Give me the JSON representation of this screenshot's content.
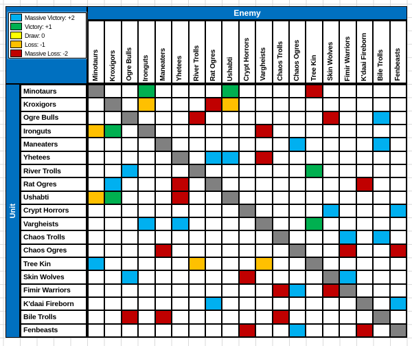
{
  "header": {
    "enemy_label": "Enemy",
    "unit_label": "Unit"
  },
  "legend": [
    {
      "code": "+2",
      "label": "Massive Victory: +2",
      "color_key": "cell_cyan"
    },
    {
      "code": "+1",
      "label": "Victory: +1",
      "color_key": "cell_green"
    },
    {
      "code": "0",
      "label": "Draw: 0",
      "color_key": "cell_yellow"
    },
    {
      "code": "-1",
      "label": "Loss: -1",
      "color_key": "cell_orange"
    },
    {
      "code": "-2",
      "label": "Massive Loss: -2",
      "color_key": "cell_red"
    }
  ],
  "colors": {
    "header_blue": "#0070C0",
    "cell_cyan": "#00B0F0",
    "cell_green": "#00B050",
    "cell_yellow": "#FFFF00",
    "cell_orange": "#FFC000",
    "cell_red": "#C00000",
    "mirror_gray": "#808080",
    "empty_white": "#FFFFFF",
    "grid_black": "#000000",
    "gridline_gray": "#D9D9D9"
  },
  "chart_data": {
    "type": "heatmap",
    "x_axis_title": "Enemy",
    "y_axis_title": "Unit",
    "legend_position": "top-left",
    "cell_codes": {
      "+2": "Massive Victory: +2",
      "+1": "Victory: +1",
      "0": "Draw: 0",
      "-1": "Loss: -1",
      "-2": "Massive Loss: -2",
      "G": "mirror matchup (gray diagonal)",
      "": "no recorded matchup (white)"
    },
    "rows": [
      "Minotaurs",
      "Kroxigors",
      "Ogre Bulls",
      "Ironguts",
      "Maneaters",
      "Yhetees",
      "River Trolls",
      "Rat Ogres",
      "Ushabti",
      "Crypt Horrors",
      "Vargheists",
      "Chaos Trolls",
      "Chaos Ogres",
      "Tree Kin",
      "Skin Wolves",
      "Fimir Warriors",
      "K'daai Fireborn",
      "Bile Trolls",
      "Fenbeasts"
    ],
    "cols": [
      "Minotaurs",
      "Kroxigors",
      "Ogre Bulls",
      "Ironguts",
      "Maneaters",
      "Yhetees",
      "River Trolls",
      "Rat Ogres",
      "Ushabti",
      "Crypt Horrors",
      "Vargheists",
      "Chaos Trolls",
      "Chaos Ogres",
      "Tree Kin",
      "Skin Wolves",
      "Fimir Warriors",
      "K'daai Fireborn",
      "Bile Trolls",
      "Fenbeasts"
    ],
    "matrix": [
      [
        "G",
        "",
        "",
        "+1",
        "",
        "",
        "",
        "",
        "+1",
        "",
        "",
        "",
        "",
        "-2",
        "",
        "",
        "",
        "",
        ""
      ],
      [
        "",
        "G",
        "",
        "-1",
        "",
        "",
        "",
        "-2",
        "-1",
        "",
        "",
        "",
        "",
        "",
        "",
        "",
        "",
        "",
        ""
      ],
      [
        "",
        "",
        "G",
        "",
        "",
        "",
        "-2",
        "",
        "",
        "",
        "",
        "",
        "",
        "",
        "-2",
        "",
        "",
        "+2",
        ""
      ],
      [
        "-1",
        "+1",
        "",
        "G",
        "",
        "",
        "",
        "",
        "",
        "",
        "-2",
        "",
        "",
        "",
        "",
        "",
        "",
        "",
        ""
      ],
      [
        "",
        "",
        "",
        "",
        "G",
        "",
        "",
        "",
        "",
        "",
        "",
        "",
        "+2",
        "",
        "",
        "",
        "",
        "+2",
        ""
      ],
      [
        "",
        "",
        "",
        "",
        "",
        "G",
        "",
        "+2",
        "+2",
        "",
        "-2",
        "",
        "",
        "",
        "",
        "",
        "",
        "",
        ""
      ],
      [
        "",
        "",
        "+2",
        "",
        "",
        "",
        "G",
        "",
        "",
        "",
        "",
        "",
        "",
        "+1",
        "",
        "",
        "",
        "",
        ""
      ],
      [
        "",
        "+2",
        "",
        "",
        "",
        "-2",
        "",
        "G",
        "",
        "",
        "",
        "",
        "",
        "",
        "",
        "",
        "-2",
        "",
        ""
      ],
      [
        "-1",
        "+1",
        "",
        "",
        "",
        "-2",
        "",
        "",
        "G",
        "",
        "",
        "",
        "",
        "",
        "",
        "",
        "",
        "",
        ""
      ],
      [
        "",
        "",
        "",
        "",
        "",
        "",
        "",
        "",
        "",
        "G",
        "",
        "",
        "",
        "",
        "+2",
        "",
        "",
        "",
        "+2"
      ],
      [
        "",
        "",
        "",
        "+2",
        "",
        "+2",
        "",
        "",
        "",
        "",
        "G",
        "",
        "",
        "+1",
        "",
        "",
        "",
        "",
        ""
      ],
      [
        "",
        "",
        "",
        "",
        "",
        "",
        "",
        "",
        "",
        "",
        "",
        "G",
        "",
        "",
        "",
        "+2",
        "",
        "+2",
        ""
      ],
      [
        "",
        "",
        "",
        "",
        "-2",
        "",
        "",
        "",
        "",
        "",
        "",
        "",
        "G",
        "",
        "",
        "-2",
        "",
        "",
        "-2"
      ],
      [
        "+2",
        "",
        "",
        "",
        "",
        "",
        "-1",
        "",
        "",
        "",
        "-1",
        "",
        "",
        "G",
        "",
        "",
        "",
        "",
        ""
      ],
      [
        "",
        "",
        "+2",
        "",
        "",
        "",
        "",
        "",
        "",
        "-2",
        "",
        "",
        "",
        "",
        "G",
        "+2",
        "",
        "",
        ""
      ],
      [
        "",
        "",
        "",
        "",
        "",
        "",
        "",
        "",
        "",
        "",
        "",
        "-2",
        "+2",
        "",
        "-2",
        "G",
        "",
        "",
        ""
      ],
      [
        "",
        "",
        "",
        "",
        "",
        "",
        "",
        "+2",
        "",
        "",
        "",
        "",
        "",
        "",
        "",
        "",
        "G",
        "",
        "+2"
      ],
      [
        "",
        "",
        "-2",
        "",
        "-2",
        "",
        "",
        "",
        "",
        "",
        "",
        "-2",
        "",
        "",
        "",
        "",
        "",
        "G",
        ""
      ],
      [
        "",
        "",
        "",
        "",
        "",
        "",
        "",
        "",
        "",
        "-2",
        "",
        "",
        "+2",
        "",
        "",
        "",
        "-2",
        "",
        "G"
      ]
    ]
  }
}
